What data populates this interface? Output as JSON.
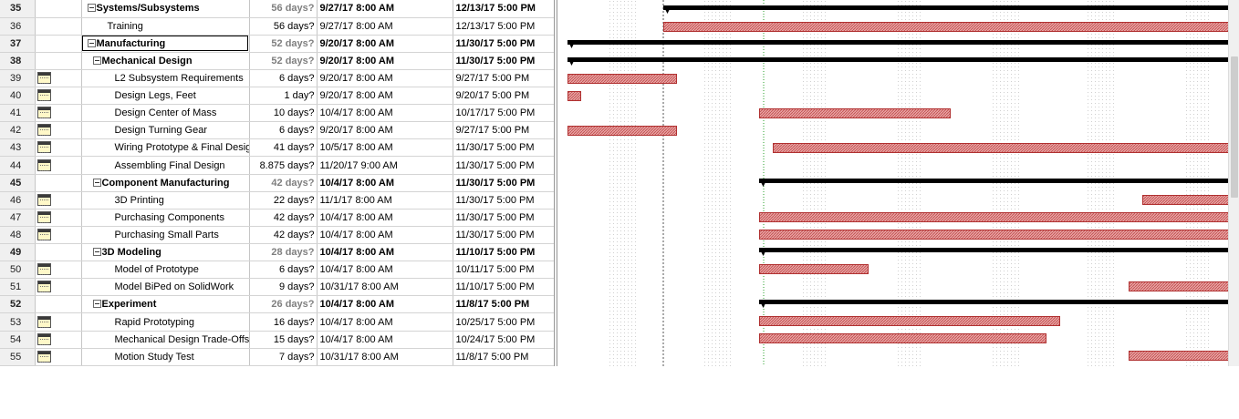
{
  "tasks": [
    {
      "id": "35",
      "indicator": false,
      "name": "Systems/Subsystems",
      "summary": true,
      "duration": "56 days?",
      "start": "9/27/17 8:00 AM",
      "finish": "12/13/17 5:00 PM"
    },
    {
      "id": "36",
      "indicator": false,
      "name": "Training",
      "summary": false,
      "duration": "56 days?",
      "start": "9/27/17 8:00 AM",
      "finish": "12/13/17 5:00 PM"
    },
    {
      "id": "37",
      "indicator": false,
      "name": "Manufacturing",
      "summary": true,
      "selected": true,
      "duration": "52 days?",
      "start": "9/20/17 8:00 AM",
      "finish": "11/30/17 5:00 PM"
    },
    {
      "id": "38",
      "indicator": false,
      "name": "Mechanical Design",
      "summary": true,
      "duration": "52 days?",
      "start": "9/20/17 8:00 AM",
      "finish": "11/30/17 5:00 PM"
    },
    {
      "id": "39",
      "indicator": true,
      "name": "L2 Subsystem Requirements",
      "summary": false,
      "duration": "6 days?",
      "start": "9/20/17 8:00 AM",
      "finish": "9/27/17 5:00 PM"
    },
    {
      "id": "40",
      "indicator": true,
      "name": "Design Legs, Feet",
      "summary": false,
      "duration": "1 day?",
      "start": "9/20/17 8:00 AM",
      "finish": "9/20/17 5:00 PM"
    },
    {
      "id": "41",
      "indicator": true,
      "name": "Design Center of Mass",
      "summary": false,
      "duration": "10 days?",
      "start": "10/4/17 8:00 AM",
      "finish": "10/17/17 5:00 PM"
    },
    {
      "id": "42",
      "indicator": true,
      "name": "Design Turning Gear",
      "summary": false,
      "duration": "6 days?",
      "start": "9/20/17 8:00 AM",
      "finish": "9/27/17 5:00 PM"
    },
    {
      "id": "43",
      "indicator": true,
      "name": "Wiring Prototype & Final Design",
      "summary": false,
      "duration": "41 days?",
      "start": "10/5/17 8:00 AM",
      "finish": "11/30/17 5:00 PM"
    },
    {
      "id": "44",
      "indicator": true,
      "name": "Assembling Final Design",
      "summary": false,
      "duration": "8.875 days?",
      "start": "11/20/17 9:00 AM",
      "finish": "11/30/17 5:00 PM"
    },
    {
      "id": "45",
      "indicator": false,
      "name": "Component Manufacturing",
      "summary": true,
      "duration": "42 days?",
      "start": "10/4/17 8:00 AM",
      "finish": "11/30/17 5:00 PM"
    },
    {
      "id": "46",
      "indicator": true,
      "name": "3D Printing",
      "summary": false,
      "duration": "22 days?",
      "start": "11/1/17 8:00 AM",
      "finish": "11/30/17 5:00 PM"
    },
    {
      "id": "47",
      "indicator": true,
      "name": "Purchasing Components",
      "summary": false,
      "duration": "42 days?",
      "start": "10/4/17 8:00 AM",
      "finish": "11/30/17 5:00 PM"
    },
    {
      "id": "48",
      "indicator": true,
      "name": "Purchasing Small Parts",
      "summary": false,
      "duration": "42 days?",
      "start": "10/4/17 8:00 AM",
      "finish": "11/30/17 5:00 PM"
    },
    {
      "id": "49",
      "indicator": false,
      "name": "3D Modeling",
      "summary": true,
      "duration": "28 days?",
      "start": "10/4/17 8:00 AM",
      "finish": "11/10/17 5:00 PM"
    },
    {
      "id": "50",
      "indicator": true,
      "name": "Model of Prototype",
      "summary": false,
      "duration": "6 days?",
      "start": "10/4/17 8:00 AM",
      "finish": "10/11/17 5:00 PM"
    },
    {
      "id": "51",
      "indicator": true,
      "name": "Model BiPed on SolidWork",
      "summary": false,
      "duration": "9 days?",
      "start": "10/31/17 8:00 AM",
      "finish": "11/10/17 5:00 PM"
    },
    {
      "id": "52",
      "indicator": false,
      "name": "Experiment",
      "summary": true,
      "duration": "26 days?",
      "start": "10/4/17 8:00 AM",
      "finish": "11/8/17 5:00 PM"
    },
    {
      "id": "53",
      "indicator": true,
      "name": "Rapid Prototyping",
      "summary": false,
      "duration": "16 days?",
      "start": "10/4/17 8:00 AM",
      "finish": "10/25/17 5:00 PM"
    },
    {
      "id": "54",
      "indicator": true,
      "name": "Mechanical Design Trade-Offs",
      "summary": false,
      "duration": "15 days?",
      "start": "10/4/17 8:00 AM",
      "finish": "10/24/17 5:00 PM"
    },
    {
      "id": "55",
      "indicator": true,
      "name": "Motion Study Test",
      "summary": false,
      "duration": "7 days?",
      "start": "10/31/17 8:00 AM",
      "finish": "11/8/17 5:00 PM"
    }
  ],
  "colors": {
    "task_bar_fill": "#e6a0a0",
    "task_bar_border": "#b03030",
    "summary_bar": "#000000",
    "nonworking_shade": "#efefef",
    "status_line": "#2aa02a"
  }
}
